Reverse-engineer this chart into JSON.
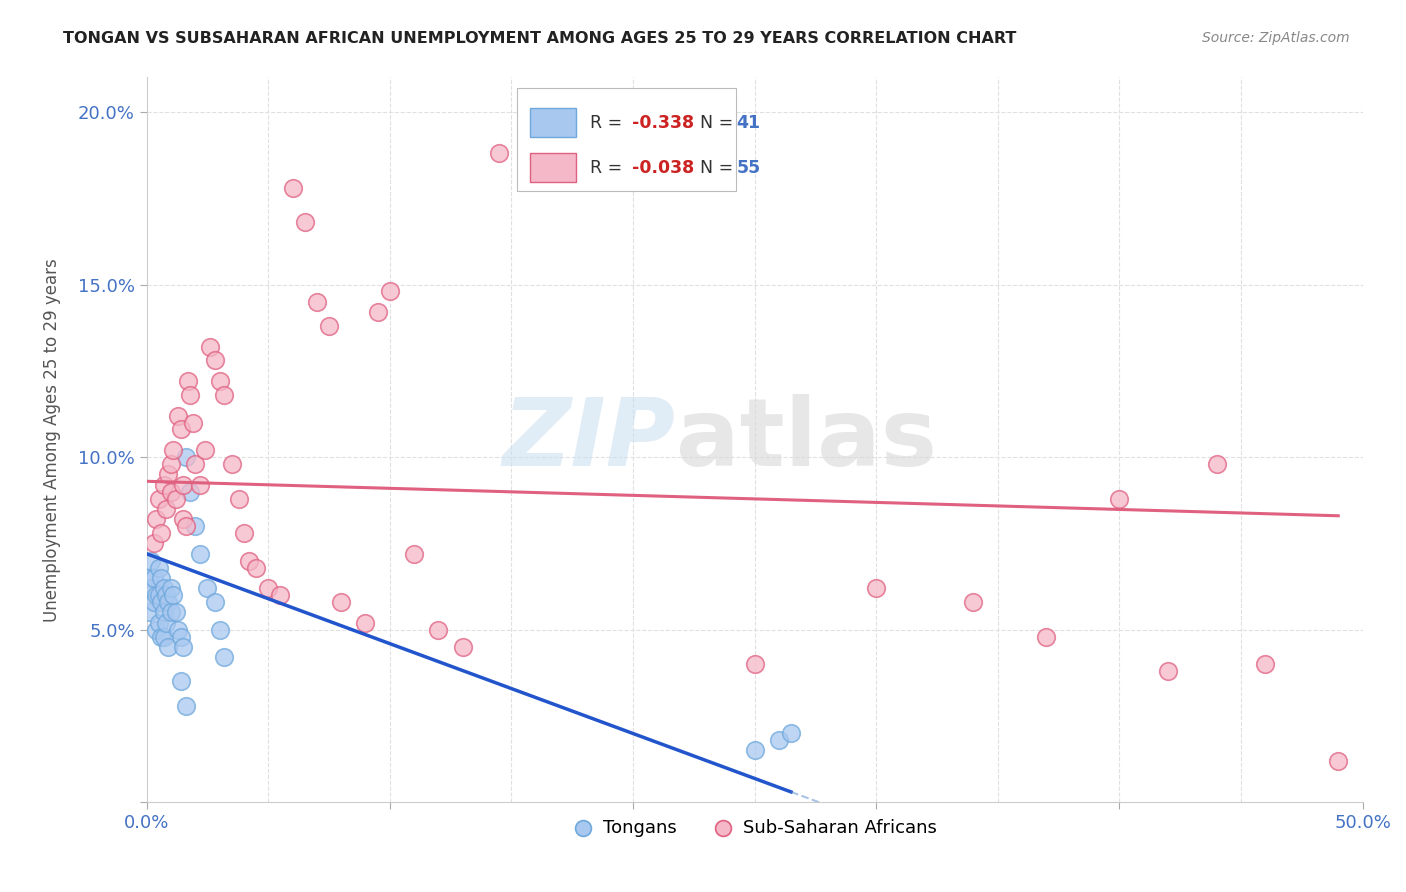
{
  "title": "TONGAN VS SUBSAHARAN AFRICAN UNEMPLOYMENT AMONG AGES 25 TO 29 YEARS CORRELATION CHART",
  "source": "Source: ZipAtlas.com",
  "ylabel": "Unemployment Among Ages 25 to 29 years",
  "xlim": [
    0,
    0.5
  ],
  "ylim": [
    0,
    0.21
  ],
  "background_color": "#ffffff",
  "grid_color": "#e0e0e0",
  "tongans_x": [
    0.001,
    0.001,
    0.002,
    0.002,
    0.003,
    0.003,
    0.004,
    0.004,
    0.005,
    0.005,
    0.005,
    0.006,
    0.006,
    0.006,
    0.007,
    0.007,
    0.007,
    0.008,
    0.008,
    0.009,
    0.009,
    0.01,
    0.01,
    0.011,
    0.012,
    0.013,
    0.014,
    0.015,
    0.016,
    0.018,
    0.02,
    0.022,
    0.025,
    0.028,
    0.03,
    0.032,
    0.014,
    0.016,
    0.25,
    0.26,
    0.265
  ],
  "tongans_y": [
    0.065,
    0.055,
    0.07,
    0.062,
    0.065,
    0.058,
    0.06,
    0.05,
    0.068,
    0.06,
    0.052,
    0.065,
    0.058,
    0.048,
    0.062,
    0.055,
    0.048,
    0.06,
    0.052,
    0.058,
    0.045,
    0.062,
    0.055,
    0.06,
    0.055,
    0.05,
    0.048,
    0.045,
    0.1,
    0.09,
    0.08,
    0.072,
    0.062,
    0.058,
    0.05,
    0.042,
    0.035,
    0.028,
    0.015,
    0.018,
    0.02
  ],
  "subsaharan_x": [
    0.003,
    0.004,
    0.005,
    0.006,
    0.007,
    0.008,
    0.009,
    0.01,
    0.01,
    0.011,
    0.012,
    0.013,
    0.014,
    0.015,
    0.015,
    0.016,
    0.017,
    0.018,
    0.019,
    0.02,
    0.022,
    0.024,
    0.026,
    0.028,
    0.03,
    0.032,
    0.035,
    0.038,
    0.04,
    0.042,
    0.045,
    0.05,
    0.055,
    0.06,
    0.065,
    0.07,
    0.075,
    0.08,
    0.09,
    0.095,
    0.1,
    0.11,
    0.12,
    0.13,
    0.25,
    0.3,
    0.34,
    0.37,
    0.4,
    0.42,
    0.44,
    0.46,
    0.49,
    0.145,
    0.16
  ],
  "subsaharan_y": [
    0.075,
    0.082,
    0.088,
    0.078,
    0.092,
    0.085,
    0.095,
    0.09,
    0.098,
    0.102,
    0.088,
    0.112,
    0.108,
    0.082,
    0.092,
    0.08,
    0.122,
    0.118,
    0.11,
    0.098,
    0.092,
    0.102,
    0.132,
    0.128,
    0.122,
    0.118,
    0.098,
    0.088,
    0.078,
    0.07,
    0.068,
    0.062,
    0.06,
    0.178,
    0.168,
    0.145,
    0.138,
    0.058,
    0.052,
    0.142,
    0.148,
    0.072,
    0.05,
    0.045,
    0.04,
    0.062,
    0.058,
    0.048,
    0.088,
    0.038,
    0.098,
    0.04,
    0.012,
    0.188,
    0.182
  ],
  "tongan_color": "#6fa8dc",
  "tongan_color_fill": "#a8c8f0",
  "subsaharan_color": "#e06080",
  "subsaharan_color_fill": "#f4b8c8",
  "tongan_R": -0.338,
  "tongan_N": 41,
  "subsaharan_R": -0.038,
  "subsaharan_N": 55,
  "trend_tongan_x0": 0.0,
  "trend_tongan_y0": 0.072,
  "trend_tongan_x1": 0.265,
  "trend_tongan_y1": 0.003,
  "trend_sub_x0": 0.0,
  "trend_sub_y0": 0.093,
  "trend_sub_x1": 0.49,
  "trend_sub_y1": 0.083
}
